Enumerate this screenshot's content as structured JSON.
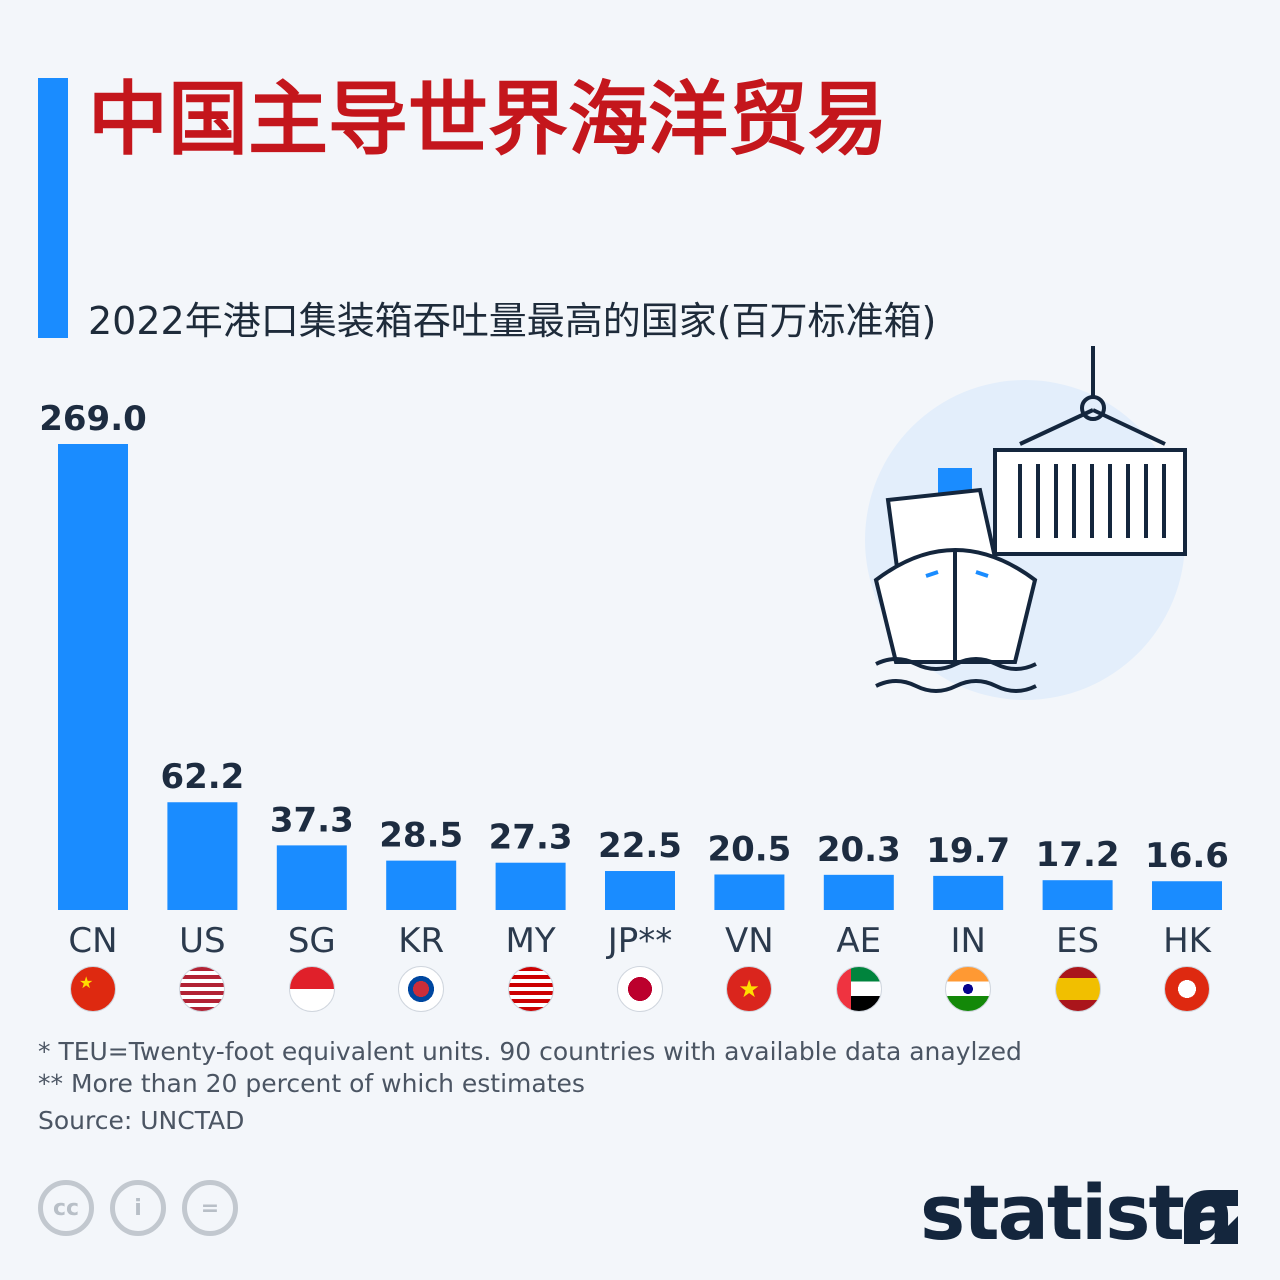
{
  "header": {
    "title": "中国主导世界海洋贸易",
    "subtitle": "2022年港口集装箱吞吐量最高的国家(百万标准箱)"
  },
  "chart_data": {
    "type": "bar",
    "title": "中国主导世界海洋贸易",
    "subtitle": "2022年港口集装箱吞吐量最高的国家(百万标准箱)",
    "categories": [
      "CN",
      "US",
      "SG",
      "KR",
      "MY",
      "JP**",
      "VN",
      "AE",
      "IN",
      "ES",
      "HK"
    ],
    "values": [
      269.0,
      62.2,
      37.3,
      28.5,
      27.3,
      22.5,
      20.5,
      20.3,
      19.7,
      17.2,
      16.6
    ],
    "value_labels": [
      "269.0",
      "62.2",
      "37.3",
      "28.5",
      "27.3",
      "22.5",
      "20.5",
      "20.3",
      "19.7",
      "17.2",
      "16.6"
    ],
    "ylim": [
      0,
      269.0
    ],
    "xlabel": "",
    "ylabel": "",
    "grid": false,
    "bar_color": "#1a8cff"
  },
  "flags": [
    "cn-flag-icon",
    "us-flag-icon",
    "sg-flag-icon",
    "kr-flag-icon",
    "my-flag-icon",
    "jp-flag-icon",
    "vn-flag-icon",
    "ae-flag-icon",
    "in-flag-icon",
    "es-flag-icon",
    "hk-flag-icon"
  ],
  "footnotes": {
    "note1": "*   TEU=Twenty-foot equivalent units. 90 countries with available data anaylzed",
    "note2": "** More than 20 percent of which estimates"
  },
  "source": "Source: UNCTAD",
  "brand": {
    "logo": "statista"
  },
  "colors": {
    "accent": "#1a8cff",
    "title": "#c4161c",
    "text": "#1d2c40"
  }
}
